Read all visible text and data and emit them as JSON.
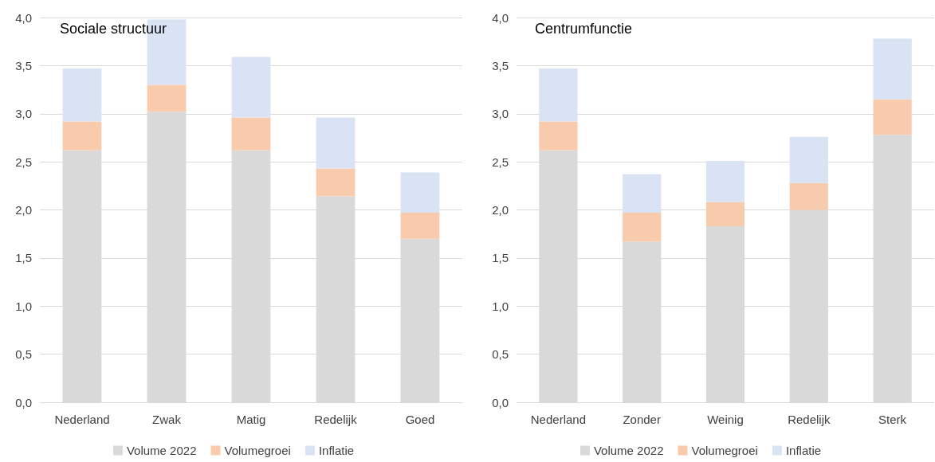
{
  "chart_data": [
    {
      "type": "bar",
      "title": "Sociale structuur",
      "categories": [
        "Nederland",
        "Zwak",
        "Matig",
        "Redelijk",
        "Goed"
      ],
      "stacked": true,
      "series": [
        {
          "name": "Volume 2022",
          "color": "#d9d9d9",
          "values": [
            2.62,
            3.02,
            2.62,
            2.14,
            1.7
          ]
        },
        {
          "name": "Volumegroei",
          "color": "#f8cbad",
          "values": [
            0.3,
            0.28,
            0.34,
            0.29,
            0.27
          ]
        },
        {
          "name": "Inflatie",
          "color": "#dae3f3",
          "values": [
            0.55,
            0.68,
            0.63,
            0.53,
            0.42
          ]
        }
      ],
      "ylim": [
        0,
        4
      ],
      "yticks": [
        {
          "value": 0,
          "label": "0,0"
        },
        {
          "value": 0.5,
          "label": "0,5"
        },
        {
          "value": 1,
          "label": "1,0"
        },
        {
          "value": 1.5,
          "label": "1,5"
        },
        {
          "value": 2,
          "label": "2,0"
        },
        {
          "value": 2.5,
          "label": "2,5"
        },
        {
          "value": 3,
          "label": "3,0"
        },
        {
          "value": 3.5,
          "label": "3,5"
        },
        {
          "value": 4,
          "label": "4,0"
        }
      ],
      "grid": "y",
      "legend": "bottom"
    },
    {
      "type": "bar",
      "title": "Centrumfunctie",
      "categories": [
        "Nederland",
        "Zonder",
        "Weinig",
        "Redelijk",
        "Sterk"
      ],
      "stacked": true,
      "series": [
        {
          "name": "Volume 2022",
          "color": "#d9d9d9",
          "values": [
            2.62,
            1.67,
            1.83,
            2.0,
            2.78
          ]
        },
        {
          "name": "Volumegroei",
          "color": "#f8cbad",
          "values": [
            0.3,
            0.3,
            0.25,
            0.28,
            0.37
          ]
        },
        {
          "name": "Inflatie",
          "color": "#dae3f3",
          "values": [
            0.55,
            0.4,
            0.43,
            0.48,
            0.63
          ]
        }
      ],
      "ylim": [
        0,
        4
      ],
      "yticks": [
        {
          "value": 0,
          "label": "0,0"
        },
        {
          "value": 0.5,
          "label": "0,5"
        },
        {
          "value": 1,
          "label": "1,0"
        },
        {
          "value": 1.5,
          "label": "1,5"
        },
        {
          "value": 2,
          "label": "2,0"
        },
        {
          "value": 2.5,
          "label": "2,5"
        },
        {
          "value": 3,
          "label": "3,0"
        },
        {
          "value": 3.5,
          "label": "3,5"
        },
        {
          "value": 4,
          "label": "4,0"
        }
      ],
      "grid": "y",
      "legend": "bottom"
    }
  ]
}
